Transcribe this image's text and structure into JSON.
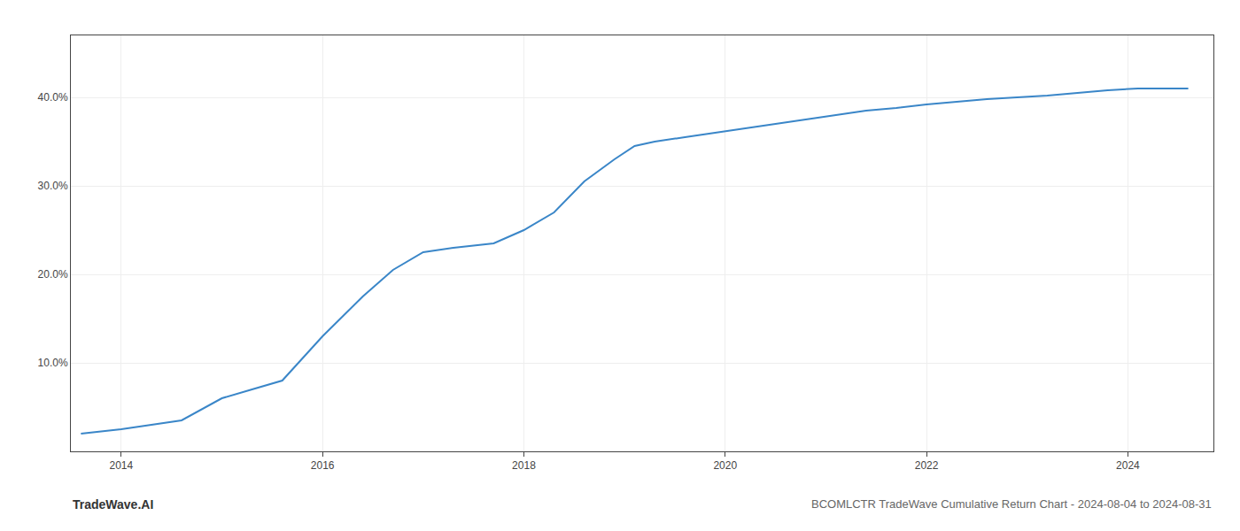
{
  "chart_data": {
    "type": "line",
    "title": "BCOMLCTR TradeWave Cumulative Return Chart - 2024-08-04 to 2024-08-31",
    "annotations": [
      "TradeWave.AI"
    ],
    "x": [
      2013.6,
      2014.0,
      2014.6,
      2015.0,
      2015.3,
      2015.6,
      2016.0,
      2016.4,
      2016.7,
      2017.0,
      2017.3,
      2017.7,
      2018.0,
      2018.3,
      2018.6,
      2018.9,
      2019.1,
      2019.3,
      2019.6,
      2019.9,
      2020.2,
      2020.5,
      2020.8,
      2021.1,
      2021.4,
      2021.7,
      2022.0,
      2022.3,
      2022.6,
      2022.9,
      2023.2,
      2023.5,
      2023.8,
      2024.1,
      2024.4,
      2024.6
    ],
    "values": [
      2.0,
      2.5,
      3.5,
      6.0,
      7.0,
      8.0,
      13.0,
      17.5,
      20.5,
      22.5,
      23.0,
      23.5,
      25.0,
      27.0,
      30.5,
      33.0,
      34.5,
      35.0,
      35.5,
      36.0,
      36.5,
      37.0,
      37.5,
      38.0,
      38.5,
      38.8,
      39.2,
      39.5,
      39.8,
      40.0,
      40.2,
      40.5,
      40.8,
      41.0,
      41.0,
      41.0
    ],
    "color": "#3a86c8",
    "xlim": [
      2013.5,
      2024.85
    ],
    "xticks": [
      2014,
      2016,
      2018,
      2020,
      2022,
      2024
    ],
    "ylim": [
      0,
      47
    ],
    "yticks": [
      {
        "value": 10.0,
        "label": "10.0%"
      },
      {
        "value": 20.0,
        "label": "20.0%"
      },
      {
        "value": 30.0,
        "label": "30.0%"
      },
      {
        "value": 40.0,
        "label": "40.0%"
      }
    ],
    "grid": true
  }
}
